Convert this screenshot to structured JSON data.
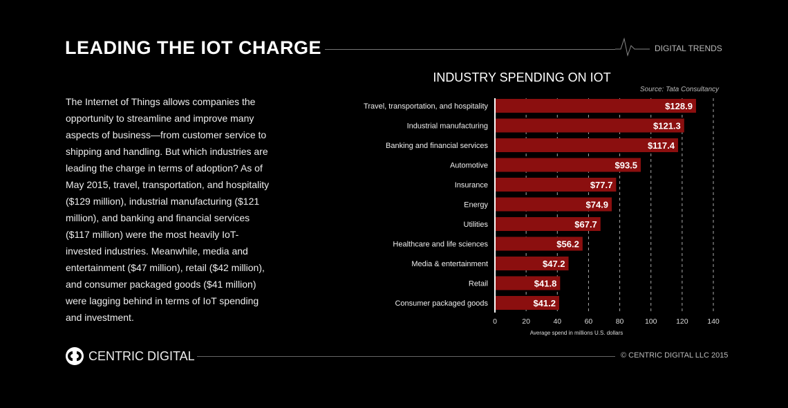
{
  "header": {
    "title": "LEADING THE IOT CHARGE",
    "section": "DIGITAL TRENDS"
  },
  "body_text": "The Internet of Things allows companies the opportunity to streamline and improve many aspects of business—from customer service to shipping and handling. But which industries are leading the charge in terms of adoption? As of May 2015, travel, transportation, and hospitality ($129 million), industrial manufacturing ($121 million), and banking and financial services ($117 million) were the most heavily IoT-invested industries. Meanwhile, media and entertainment ($47 million), retail ($42 million), and consumer packaged goods ($41 million) were lagging behind in terms of IoT spending and investment.",
  "footer": {
    "brand": "CENTRIC DIGITAL",
    "copyright": "© CENTRIC DIGITAL LLC 2015"
  },
  "chart_data": {
    "type": "bar",
    "orientation": "horizontal",
    "title": "INDUSTRY SPENDING ON IOT",
    "source": "Source:  Tata Consultancy",
    "xlabel": "Average spend in millions U.S. dollars",
    "xlim": [
      0,
      140
    ],
    "xticks": [
      0,
      20,
      40,
      60,
      80,
      100,
      120,
      140
    ],
    "grid": "vertical dashed",
    "bar_color": "#8b0f0f",
    "categories": [
      "Travel, transportation, and hospitality",
      "Industrial manufacturing",
      "Banking and financial services",
      "Automotive",
      "Insurance",
      "Energy",
      "Utilities",
      "Healthcare and life sciences",
      "Media & entertainment",
      "Retail",
      "Consumer packaged goods"
    ],
    "values": [
      128.9,
      121.3,
      117.4,
      93.5,
      77.7,
      74.9,
      67.7,
      56.2,
      47.2,
      41.8,
      41.2
    ],
    "labels": [
      "$128.9",
      "$121.3",
      "$117.4",
      "$93.5",
      "$77.7",
      "$74.9",
      "$67.7",
      "$56.2",
      "$47.2",
      "$41.8",
      "$41.2"
    ]
  }
}
